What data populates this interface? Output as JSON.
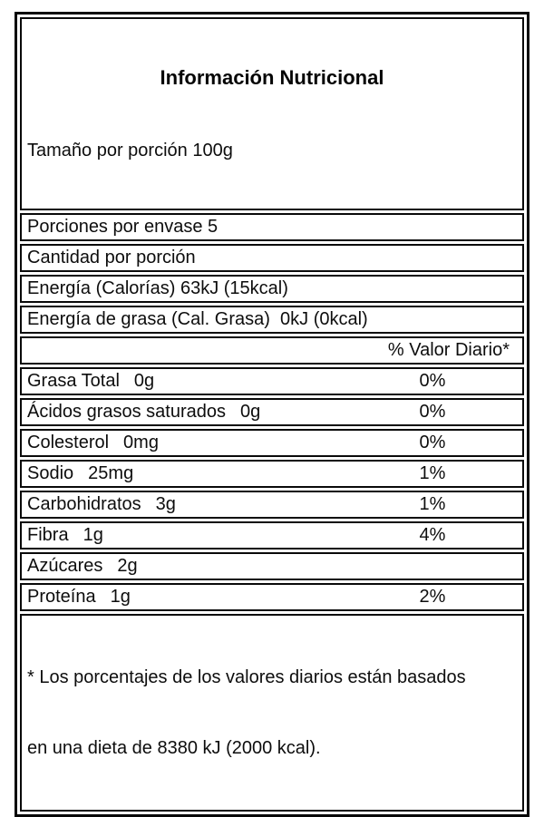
{
  "label": {
    "title": "Información Nutricional",
    "serving_size": "Tamaño por porción 100g",
    "servings_per_container": "Porciones por envase 5",
    "amount_per_serving": "Cantidad por porción",
    "energy": "Energía (Calorías) 63kJ (15kcal)",
    "energy_fat": "Energía de grasa (Cal. Grasa)  0kJ (0kcal)",
    "dv_header": "% Valor Diario*",
    "nutrients": [
      {
        "name": "Grasa Total",
        "amount": "0g",
        "dv": "0%"
      },
      {
        "name": "Ácidos grasos saturados",
        "amount": "0g",
        "dv": "0%"
      },
      {
        "name": "Colesterol",
        "amount": "0mg",
        "dv": "0%"
      },
      {
        "name": "Sodio",
        "amount": "25mg",
        "dv": "1%"
      },
      {
        "name": "Carbohidratos",
        "amount": "3g",
        "dv": "1%"
      },
      {
        "name": "Fibra",
        "amount": "1g",
        "dv": "4%"
      },
      {
        "name": "Azúcares",
        "amount": "2g",
        "dv": ""
      },
      {
        "name": "Proteína",
        "amount": "1g",
        "dv": "2%"
      }
    ],
    "footnote_line1": "* Los porcentajes de los valores diarios están basados",
    "footnote_line2": "en una dieta de 8380 kJ (2000 kcal)."
  }
}
